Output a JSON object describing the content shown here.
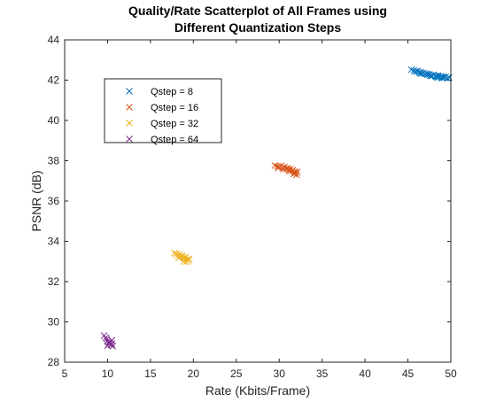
{
  "chart_data": {
    "type": "scatter",
    "title_lines": [
      "Quality/Rate Scatterplot of All Frames using",
      "Different Quantization Steps"
    ],
    "xlabel": "Rate (Kbits/Frame)",
    "ylabel": "PSNR (dB)",
    "xlim": [
      5,
      50
    ],
    "ylim": [
      28,
      44
    ],
    "xticks": [
      5,
      10,
      15,
      20,
      25,
      30,
      35,
      40,
      45,
      50
    ],
    "yticks": [
      28,
      30,
      32,
      34,
      36,
      38,
      40,
      42,
      44
    ],
    "grid": false,
    "legend_position": "upper-left",
    "marker": "x",
    "series": [
      {
        "name": "Qstep = 8",
        "color": "#0072BD",
        "points": [
          [
            45.4,
            42.52
          ],
          [
            45.7,
            42.47
          ],
          [
            45.9,
            42.43
          ],
          [
            46.1,
            42.45
          ],
          [
            46.3,
            42.4
          ],
          [
            46.5,
            42.38
          ],
          [
            46.6,
            42.33
          ],
          [
            46.8,
            42.36
          ],
          [
            47.0,
            42.3
          ],
          [
            47.2,
            42.32
          ],
          [
            47.3,
            42.27
          ],
          [
            47.5,
            42.29
          ],
          [
            47.7,
            42.24
          ],
          [
            47.8,
            42.2
          ],
          [
            48.0,
            42.26
          ],
          [
            48.2,
            42.21
          ],
          [
            48.3,
            42.18
          ],
          [
            48.5,
            42.23
          ],
          [
            48.6,
            42.15
          ],
          [
            48.8,
            42.2
          ],
          [
            48.9,
            42.14
          ],
          [
            49.1,
            42.18
          ],
          [
            49.2,
            42.12
          ],
          [
            49.4,
            42.16
          ],
          [
            49.6,
            42.1
          ],
          [
            49.8,
            42.13
          ],
          [
            46.4,
            42.34
          ],
          [
            47.6,
            42.22
          ],
          [
            48.4,
            42.13
          ],
          [
            49.0,
            42.1
          ]
        ]
      },
      {
        "name": "Qstep = 16",
        "color": "#D95319",
        "points": [
          [
            29.5,
            37.76
          ],
          [
            29.8,
            37.72
          ],
          [
            30.0,
            37.7
          ],
          [
            30.2,
            37.74
          ],
          [
            30.4,
            37.66
          ],
          [
            30.6,
            37.69
          ],
          [
            30.8,
            37.6
          ],
          [
            31.0,
            37.63
          ],
          [
            31.1,
            37.55
          ],
          [
            31.3,
            37.58
          ],
          [
            31.5,
            37.5
          ],
          [
            31.6,
            37.53
          ],
          [
            31.8,
            37.46
          ],
          [
            31.9,
            37.4
          ],
          [
            32.1,
            37.44
          ],
          [
            30.5,
            37.58
          ],
          [
            31.2,
            37.48
          ],
          [
            31.7,
            37.35
          ],
          [
            32.0,
            37.3
          ],
          [
            29.9,
            37.64
          ]
        ]
      },
      {
        "name": "Qstep = 32",
        "color": "#EDB120",
        "points": [
          [
            17.8,
            33.42
          ],
          [
            18.0,
            33.38
          ],
          [
            18.2,
            33.3
          ],
          [
            18.4,
            33.36
          ],
          [
            18.5,
            33.25
          ],
          [
            18.7,
            33.28
          ],
          [
            18.8,
            33.2
          ],
          [
            19.0,
            33.15
          ],
          [
            19.1,
            33.22
          ],
          [
            19.3,
            33.1
          ],
          [
            19.4,
            33.05
          ],
          [
            19.5,
            33.12
          ],
          [
            18.3,
            33.18
          ],
          [
            18.9,
            33.0
          ],
          [
            19.2,
            32.98
          ]
        ]
      },
      {
        "name": "Qstep = 64",
        "color": "#7E2F8E",
        "points": [
          [
            9.6,
            29.32
          ],
          [
            9.8,
            29.22
          ],
          [
            9.9,
            29.15
          ],
          [
            10.0,
            29.05
          ],
          [
            10.1,
            28.98
          ],
          [
            10.2,
            28.9
          ],
          [
            10.3,
            29.0
          ],
          [
            10.4,
            28.85
          ],
          [
            10.5,
            28.92
          ],
          [
            10.6,
            28.8
          ],
          [
            10.0,
            28.82
          ],
          [
            10.5,
            29.08
          ]
        ]
      }
    ]
  }
}
